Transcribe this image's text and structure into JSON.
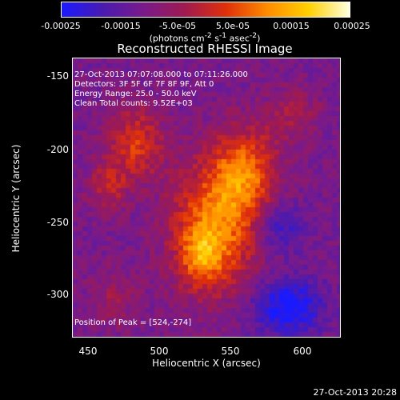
{
  "chart_data": {
    "type": "heatmap",
    "title": "Reconstructed RHESSI Image",
    "xlabel": "Heliocentric X (arcsec)",
    "ylabel": "Heliocentric Y (arcsec)",
    "xlim": [
      433,
      623
    ],
    "ylim": [
      -331,
      -136
    ],
    "x_ticks": [
      450,
      500,
      550,
      600
    ],
    "y_ticks": [
      -300,
      -250,
      -200,
      -150
    ],
    "colorbar": {
      "range": [
        -0.00025,
        0.00025
      ],
      "tick_labels": [
        "-0.00025",
        "-0.00015",
        "-5.0e-05",
        "5.0e-05",
        "0.00015",
        "0.00025"
      ],
      "tick_values": [
        -0.00025,
        -0.00015,
        -5e-05,
        5e-05,
        0.00015,
        0.00025
      ],
      "units_prefix": "(photons cm",
      "units_exp1": "-2",
      "units_mid": " s",
      "units_exp2": "-1",
      "units_mid2": " asec",
      "units_exp3": "-2",
      "units_suffix": ")",
      "colors": [
        "#1a1aff",
        "#4a1ab0",
        "#7a1a8a",
        "#a01a50",
        "#e0300a",
        "#ff8c00",
        "#ffd000",
        "#ffffe0"
      ]
    },
    "annotations": {
      "time_range": "27-Oct-2013 07:07:08.000 to 07:11:26.000",
      "detectors": "Detectors: 3F 5F 6F 7F 8F 9F, Att 0",
      "energy": "Energy Range: 25.0 - 50.0 keV",
      "clean": "Clean     Total counts: 9.52E+03",
      "peak": "Position of Peak = [524,-274]"
    },
    "peak": [
      524,
      -274
    ],
    "sources": [
      {
        "x": 534,
        "y": -255,
        "sx": 22,
        "sy": 32,
        "amp": 0.0002
      },
      {
        "x": 555,
        "y": -215,
        "sx": 16,
        "sy": 22,
        "amp": 0.00017
      },
      {
        "x": 524,
        "y": -274,
        "sx": 10,
        "sy": 14,
        "amp": 0.00012
      },
      {
        "x": 478,
        "y": -195,
        "sx": 14,
        "sy": 18,
        "amp": 0.00014
      },
      {
        "x": 458,
        "y": -225,
        "sx": 10,
        "sy": 12,
        "amp": 0.0001
      },
      {
        "x": 590,
        "y": -175,
        "sx": 14,
        "sy": 14,
        "amp": 7e-05
      },
      {
        "x": 462,
        "y": -305,
        "sx": 12,
        "sy": 14,
        "amp": 6e-05
      },
      {
        "x": 585,
        "y": -310,
        "sx": 18,
        "sy": 14,
        "amp": -0.00015
      },
      {
        "x": 580,
        "y": -255,
        "sx": 12,
        "sy": 12,
        "amp": -0.0001
      }
    ],
    "grid": false
  },
  "timestamp": "27-Oct-2013 20:28"
}
